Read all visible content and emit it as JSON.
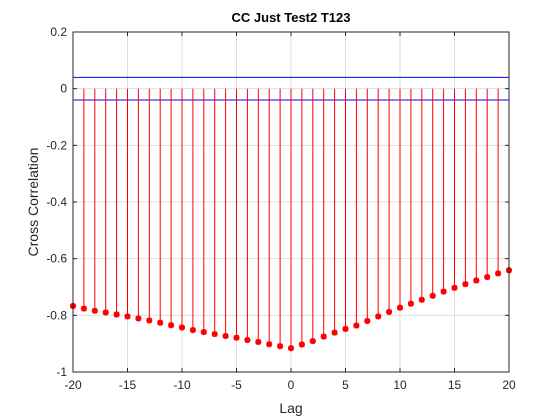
{
  "chart_data": {
    "type": "stem",
    "title": "CC Just Test2 T123",
    "xlabel": "Lag",
    "ylabel": "Cross Correlation",
    "xlim": [
      -20,
      20
    ],
    "ylim": [
      -1,
      0.2
    ],
    "xticks": [
      "-20",
      "-15",
      "-10",
      "-5",
      "0",
      "5",
      "10",
      "15",
      "20"
    ],
    "yticks": [
      "-1",
      "-0.8",
      "-0.6",
      "-0.4",
      "-0.2",
      "0",
      "0.2"
    ],
    "grid": true,
    "stem_color": "#ff0000",
    "bound_color": "#0000ff",
    "confidence_bounds": [
      0.04,
      -0.04
    ],
    "series": [
      {
        "x": [
          -20,
          -19,
          -18,
          -17,
          -16,
          -15,
          -14,
          -13,
          -12,
          -11,
          -10,
          -9,
          -8,
          -7,
          -6,
          -5,
          -4,
          -3,
          -2,
          -1,
          0,
          1,
          2,
          3,
          4,
          5,
          6,
          7,
          8,
          9,
          10,
          11,
          12,
          13,
          14,
          15,
          16,
          17,
          18,
          19,
          20
        ],
        "values": [
          -0.767,
          -0.776,
          -0.784,
          -0.79,
          -0.797,
          -0.804,
          -0.811,
          -0.818,
          -0.826,
          -0.835,
          -0.843,
          -0.852,
          -0.859,
          -0.866,
          -0.873,
          -0.879,
          -0.887,
          -0.894,
          -0.902,
          -0.909,
          -0.916,
          -0.903,
          -0.891,
          -0.875,
          -0.861,
          -0.848,
          -0.836,
          -0.82,
          -0.804,
          -0.788,
          -0.773,
          -0.759,
          -0.745,
          -0.731,
          -0.716,
          -0.703,
          -0.69,
          -0.677,
          -0.665,
          -0.652,
          -0.641
        ]
      }
    ]
  }
}
